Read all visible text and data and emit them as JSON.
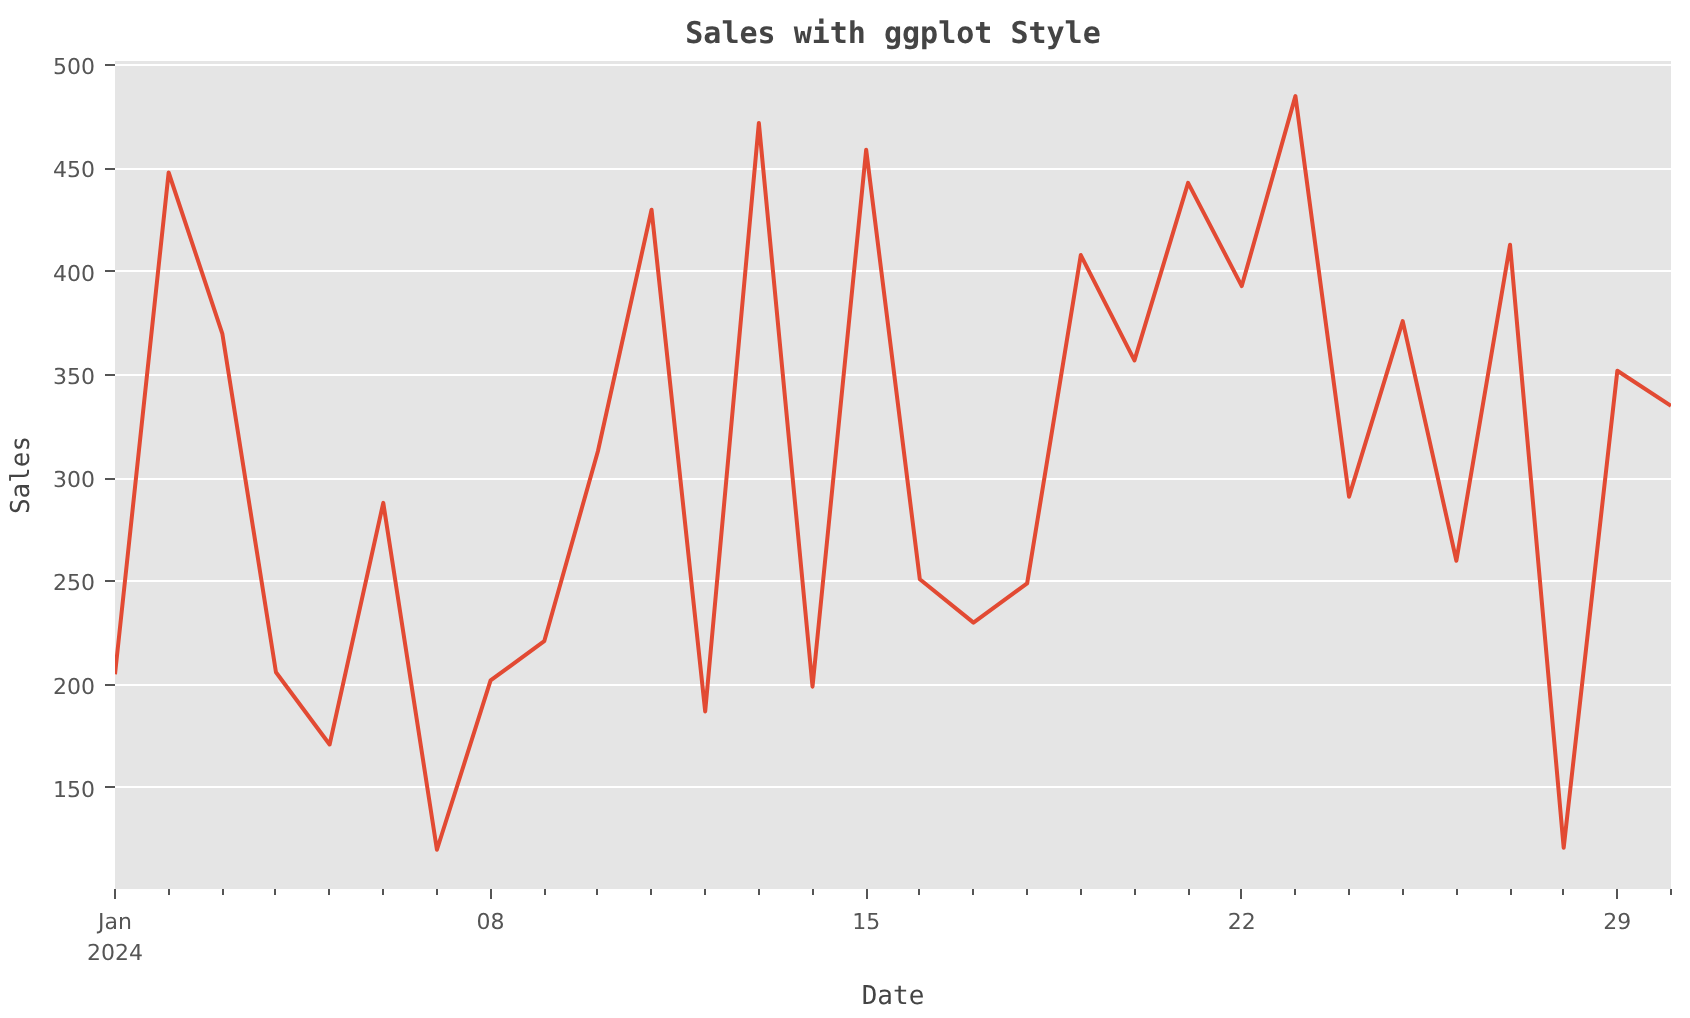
{
  "chart_data": {
    "type": "line",
    "title": "Sales with ggplot Style",
    "xlabel": "Date",
    "ylabel": "Sales",
    "x": [
      "2024-01-01",
      "2024-01-02",
      "2024-01-03",
      "2024-01-04",
      "2024-01-05",
      "2024-01-06",
      "2024-01-07",
      "2024-01-08",
      "2024-01-09",
      "2024-01-10",
      "2024-01-11",
      "2024-01-12",
      "2024-01-13",
      "2024-01-14",
      "2024-01-15",
      "2024-01-16",
      "2024-01-17",
      "2024-01-18",
      "2024-01-19",
      "2024-01-20",
      "2024-01-21",
      "2024-01-22",
      "2024-01-23",
      "2024-01-24",
      "2024-01-25",
      "2024-01-26",
      "2024-01-27",
      "2024-01-28",
      "2024-01-29",
      "2024-01-30"
    ],
    "series": [
      {
        "color": "#e24a33",
        "values": [
          205,
          448,
          370,
          206,
          171,
          288,
          120,
          202,
          221,
          313,
          430,
          187,
          472,
          199,
          459,
          251,
          230,
          249,
          408,
          357,
          443,
          393,
          485,
          291,
          376,
          260,
          413,
          121,
          352,
          335
        ]
      }
    ],
    "xlim": [
      "2024-01-01",
      "2024-01-30"
    ],
    "xticks": [
      {
        "value": "2024-01-01",
        "label": "Jan\n2024"
      },
      {
        "value": "2024-01-02",
        "label": null
      },
      {
        "value": "2024-01-03",
        "label": null
      },
      {
        "value": "2024-01-04",
        "label": null
      },
      {
        "value": "2024-01-05",
        "label": null
      },
      {
        "value": "2024-01-06",
        "label": null
      },
      {
        "value": "2024-01-07",
        "label": null
      },
      {
        "value": "2024-01-08",
        "label": "08"
      },
      {
        "value": "2024-01-09",
        "label": null
      },
      {
        "value": "2024-01-10",
        "label": null
      },
      {
        "value": "2024-01-11",
        "label": null
      },
      {
        "value": "2024-01-12",
        "label": null
      },
      {
        "value": "2024-01-13",
        "label": null
      },
      {
        "value": "2024-01-14",
        "label": null
      },
      {
        "value": "2024-01-15",
        "label": "15"
      },
      {
        "value": "2024-01-16",
        "label": null
      },
      {
        "value": "2024-01-17",
        "label": null
      },
      {
        "value": "2024-01-18",
        "label": null
      },
      {
        "value": "2024-01-19",
        "label": null
      },
      {
        "value": "2024-01-20",
        "label": null
      },
      {
        "value": "2024-01-21",
        "label": null
      },
      {
        "value": "2024-01-22",
        "label": "22"
      },
      {
        "value": "2024-01-23",
        "label": null
      },
      {
        "value": "2024-01-24",
        "label": null
      },
      {
        "value": "2024-01-25",
        "label": null
      },
      {
        "value": "2024-01-26",
        "label": null
      },
      {
        "value": "2024-01-27",
        "label": null
      },
      {
        "value": "2024-01-28",
        "label": null
      },
      {
        "value": "2024-01-29",
        "label": "29"
      },
      {
        "value": "2024-01-30",
        "label": null
      }
    ],
    "ylim": [
      101,
      502
    ],
    "yticks": [
      150,
      200,
      250,
      300,
      350,
      400,
      450,
      500
    ],
    "grid": "y",
    "line_style": "solid",
    "marker": "none"
  }
}
